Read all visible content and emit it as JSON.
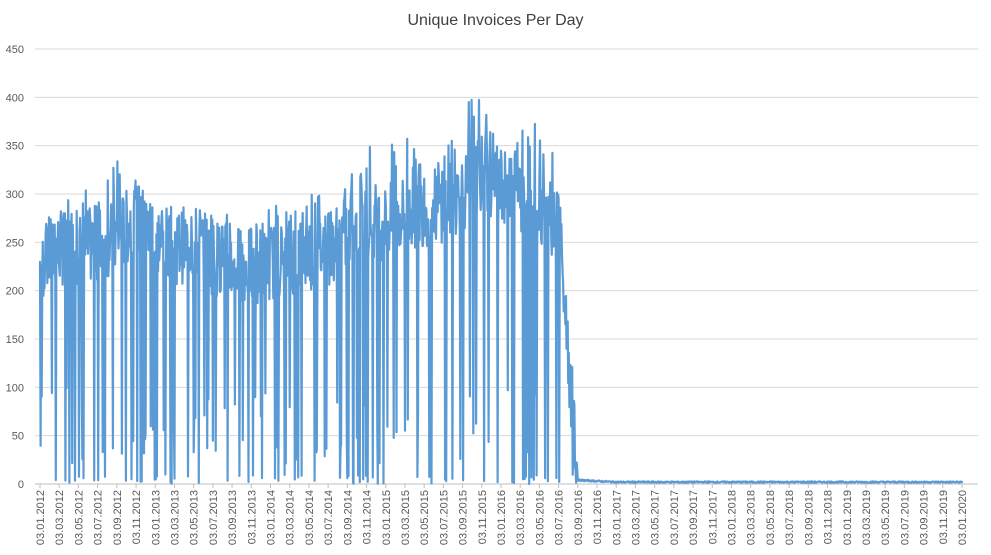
{
  "colors": {
    "series": "#5b9bd5",
    "grid": "#d9d9d9",
    "text": "#595959"
  },
  "chart_data": {
    "type": "line",
    "title": "Unique Invoices Per Day",
    "xlabel": "",
    "ylabel": "",
    "ylim": [
      0,
      450
    ],
    "y_ticks": [
      0,
      50,
      100,
      150,
      200,
      250,
      300,
      350,
      400,
      450
    ],
    "x_tick_labels": [
      "03.01.2012",
      "03.03.2012",
      "03.05.2012",
      "03.07.2012",
      "03.09.2012",
      "03.11.2012",
      "03.01.2013",
      "03.03.2013",
      "03.05.2013",
      "03.07.2013",
      "03.09.2013",
      "03.11.2013",
      "03.01.2014",
      "03.03.2014",
      "03.05.2014",
      "03.07.2014",
      "03.09.2014",
      "03.11.2014",
      "03.01.2015",
      "03.03.2015",
      "03.05.2015",
      "03.07.2015",
      "03.09.2015",
      "03.11.2015",
      "03.01.2016",
      "03.03.2016",
      "03.05.2016",
      "03.07.2016",
      "03.09.2016",
      "03.11.2016",
      "03.01.2017",
      "03.03.2017",
      "03.05.2017",
      "03.07.2017",
      "03.09.2017",
      "03.11.2017",
      "03.01.2018",
      "03.03.2018",
      "03.05.2018",
      "03.07.2018",
      "03.09.2018",
      "03.11.2018",
      "03.01.2019",
      "03.03.2019",
      "03.05.2019",
      "03.07.2019",
      "03.09.2019",
      "03.11.2019",
      "03.01.2020"
    ],
    "grid": true,
    "legend": "none",
    "series": [
      {
        "x": [
          "03.01.2012",
          "03.03.2012",
          "03.05.2012",
          "03.07.2012",
          "03.09.2012",
          "03.11.2012",
          "03.01.2013",
          "03.03.2013",
          "03.05.2013",
          "03.07.2013",
          "03.09.2013",
          "03.11.2013",
          "03.01.2014",
          "03.03.2014",
          "03.05.2014",
          "03.07.2014",
          "03.09.2014",
          "03.11.2014",
          "03.01.2015",
          "03.03.2015",
          "03.05.2015",
          "03.07.2015",
          "03.09.2015",
          "03.11.2015",
          "03.01.2016",
          "03.03.2016",
          "03.05.2016",
          "03.07.2016",
          "03.09.2016",
          "03.11.2016",
          "03.01.2017",
          "03.03.2017",
          "03.05.2017",
          "03.07.2017",
          "03.09.2017",
          "03.11.2017",
          "03.01.2018",
          "03.03.2018",
          "03.05.2018",
          "03.07.2018",
          "03.09.2018",
          "03.11.2018",
          "03.01.2019",
          "03.03.2019",
          "03.05.2019",
          "03.07.2019",
          "03.09.2019",
          "03.11.2019",
          "03.01.2020"
        ],
        "values": [
          225,
          245,
          240,
          250,
          255,
          275,
          255,
          245,
          250,
          235,
          230,
          225,
          230,
          235,
          240,
          245,
          260,
          275,
          270,
          280,
          285,
          290,
          300,
          320,
          305,
          300,
          290,
          270,
          4,
          3,
          2,
          2,
          2,
          2,
          2,
          2,
          2,
          2,
          2,
          2,
          2,
          2,
          2,
          2,
          2,
          2,
          2,
          2,
          2
        ],
        "min_values": [
          0,
          0,
          0,
          0,
          0,
          0,
          0,
          0,
          0,
          0,
          0,
          0,
          0,
          0,
          0,
          0,
          0,
          0,
          0,
          0,
          0,
          0,
          0,
          0,
          0,
          0,
          0,
          0,
          1,
          1,
          1,
          1,
          1,
          1,
          1,
          1,
          1,
          1,
          1,
          1,
          1,
          1,
          1,
          1,
          1,
          1,
          1,
          1,
          1
        ],
        "max_values": [
          268,
          285,
          313,
          295,
          345,
          315,
          285,
          285,
          290,
          280,
          285,
          282,
          290,
          285,
          305,
          295,
          315,
          352,
          345,
          365,
          330,
          340,
          400,
          400,
          350,
          365,
          388,
          330,
          5,
          4,
          3,
          3,
          3,
          3,
          3,
          3,
          3,
          3,
          3,
          3,
          3,
          3,
          3,
          3,
          3,
          3,
          3,
          3,
          3
        ]
      }
    ]
  }
}
